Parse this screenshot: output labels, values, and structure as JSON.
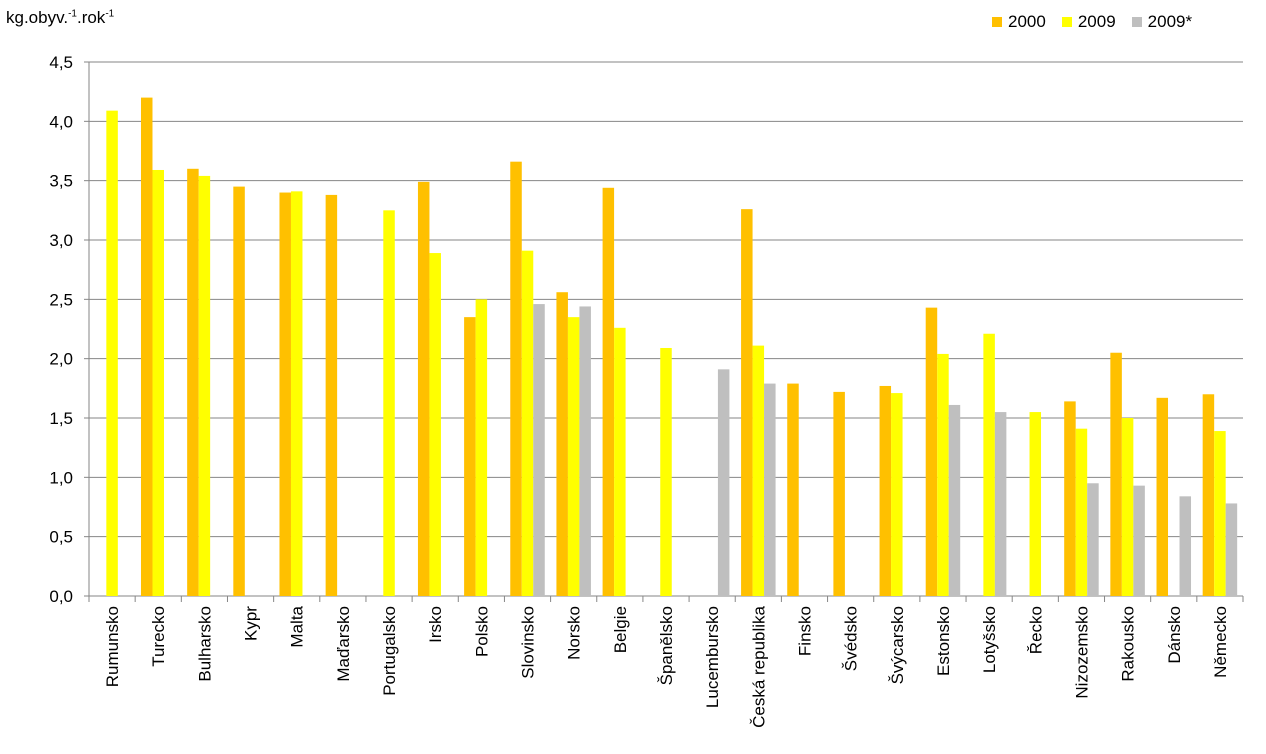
{
  "chart_data": {
    "type": "bar",
    "title": "",
    "ylabel": {
      "base": "kg.obyv.",
      "exp1": "-1",
      "mid": ".rok",
      "exp2": "-1"
    },
    "xlabel": "",
    "ylim": [
      0,
      4.5
    ],
    "ytick_step": 0.5,
    "ytick_labels": [
      "0,0",
      "0,5",
      "1,0",
      "1,5",
      "2,0",
      "2,5",
      "3,0",
      "3,5",
      "4,0",
      "4,5"
    ],
    "grid": true,
    "legend_position": "top-right",
    "categories": [
      "Rumunsko",
      "Turecko",
      "Bulharsko",
      "Kypr",
      "Malta",
      "Maďarsko",
      "Portugalsko",
      "Irsko",
      "Polsko",
      "Slovinsko",
      "Norsko",
      "Belgie",
      "Španělsko",
      "Lucembursko",
      "Česká republika",
      "Finsko",
      "Švédsko",
      "Švýcarsko",
      "Estonsko",
      "Lotyšsko",
      "Řecko",
      "Nizozemsko",
      "Rakousko",
      "Dánsko",
      "Německo"
    ],
    "series": [
      {
        "name": "2000",
        "color": "#FFC000",
        "values": [
          null,
          4.2,
          3.6,
          3.45,
          3.4,
          3.38,
          null,
          3.49,
          2.35,
          3.66,
          2.56,
          3.44,
          null,
          null,
          3.26,
          1.79,
          1.72,
          1.77,
          2.43,
          null,
          null,
          1.64,
          2.05,
          1.67,
          1.7
        ]
      },
      {
        "name": "2009",
        "color": "#FFFF00",
        "values": [
          4.09,
          3.59,
          3.54,
          null,
          3.41,
          null,
          3.25,
          2.89,
          2.5,
          2.91,
          2.35,
          2.26,
          2.09,
          null,
          2.11,
          null,
          null,
          1.71,
          2.04,
          2.21,
          1.55,
          1.41,
          1.5,
          null,
          1.39
        ]
      },
      {
        "name": "2009*",
        "color": "#BFBFBF",
        "values": [
          null,
          null,
          null,
          null,
          null,
          null,
          null,
          null,
          null,
          2.46,
          2.44,
          null,
          null,
          1.91,
          1.79,
          null,
          null,
          null,
          1.61,
          1.55,
          null,
          0.95,
          0.93,
          0.84,
          0.78
        ]
      }
    ]
  }
}
